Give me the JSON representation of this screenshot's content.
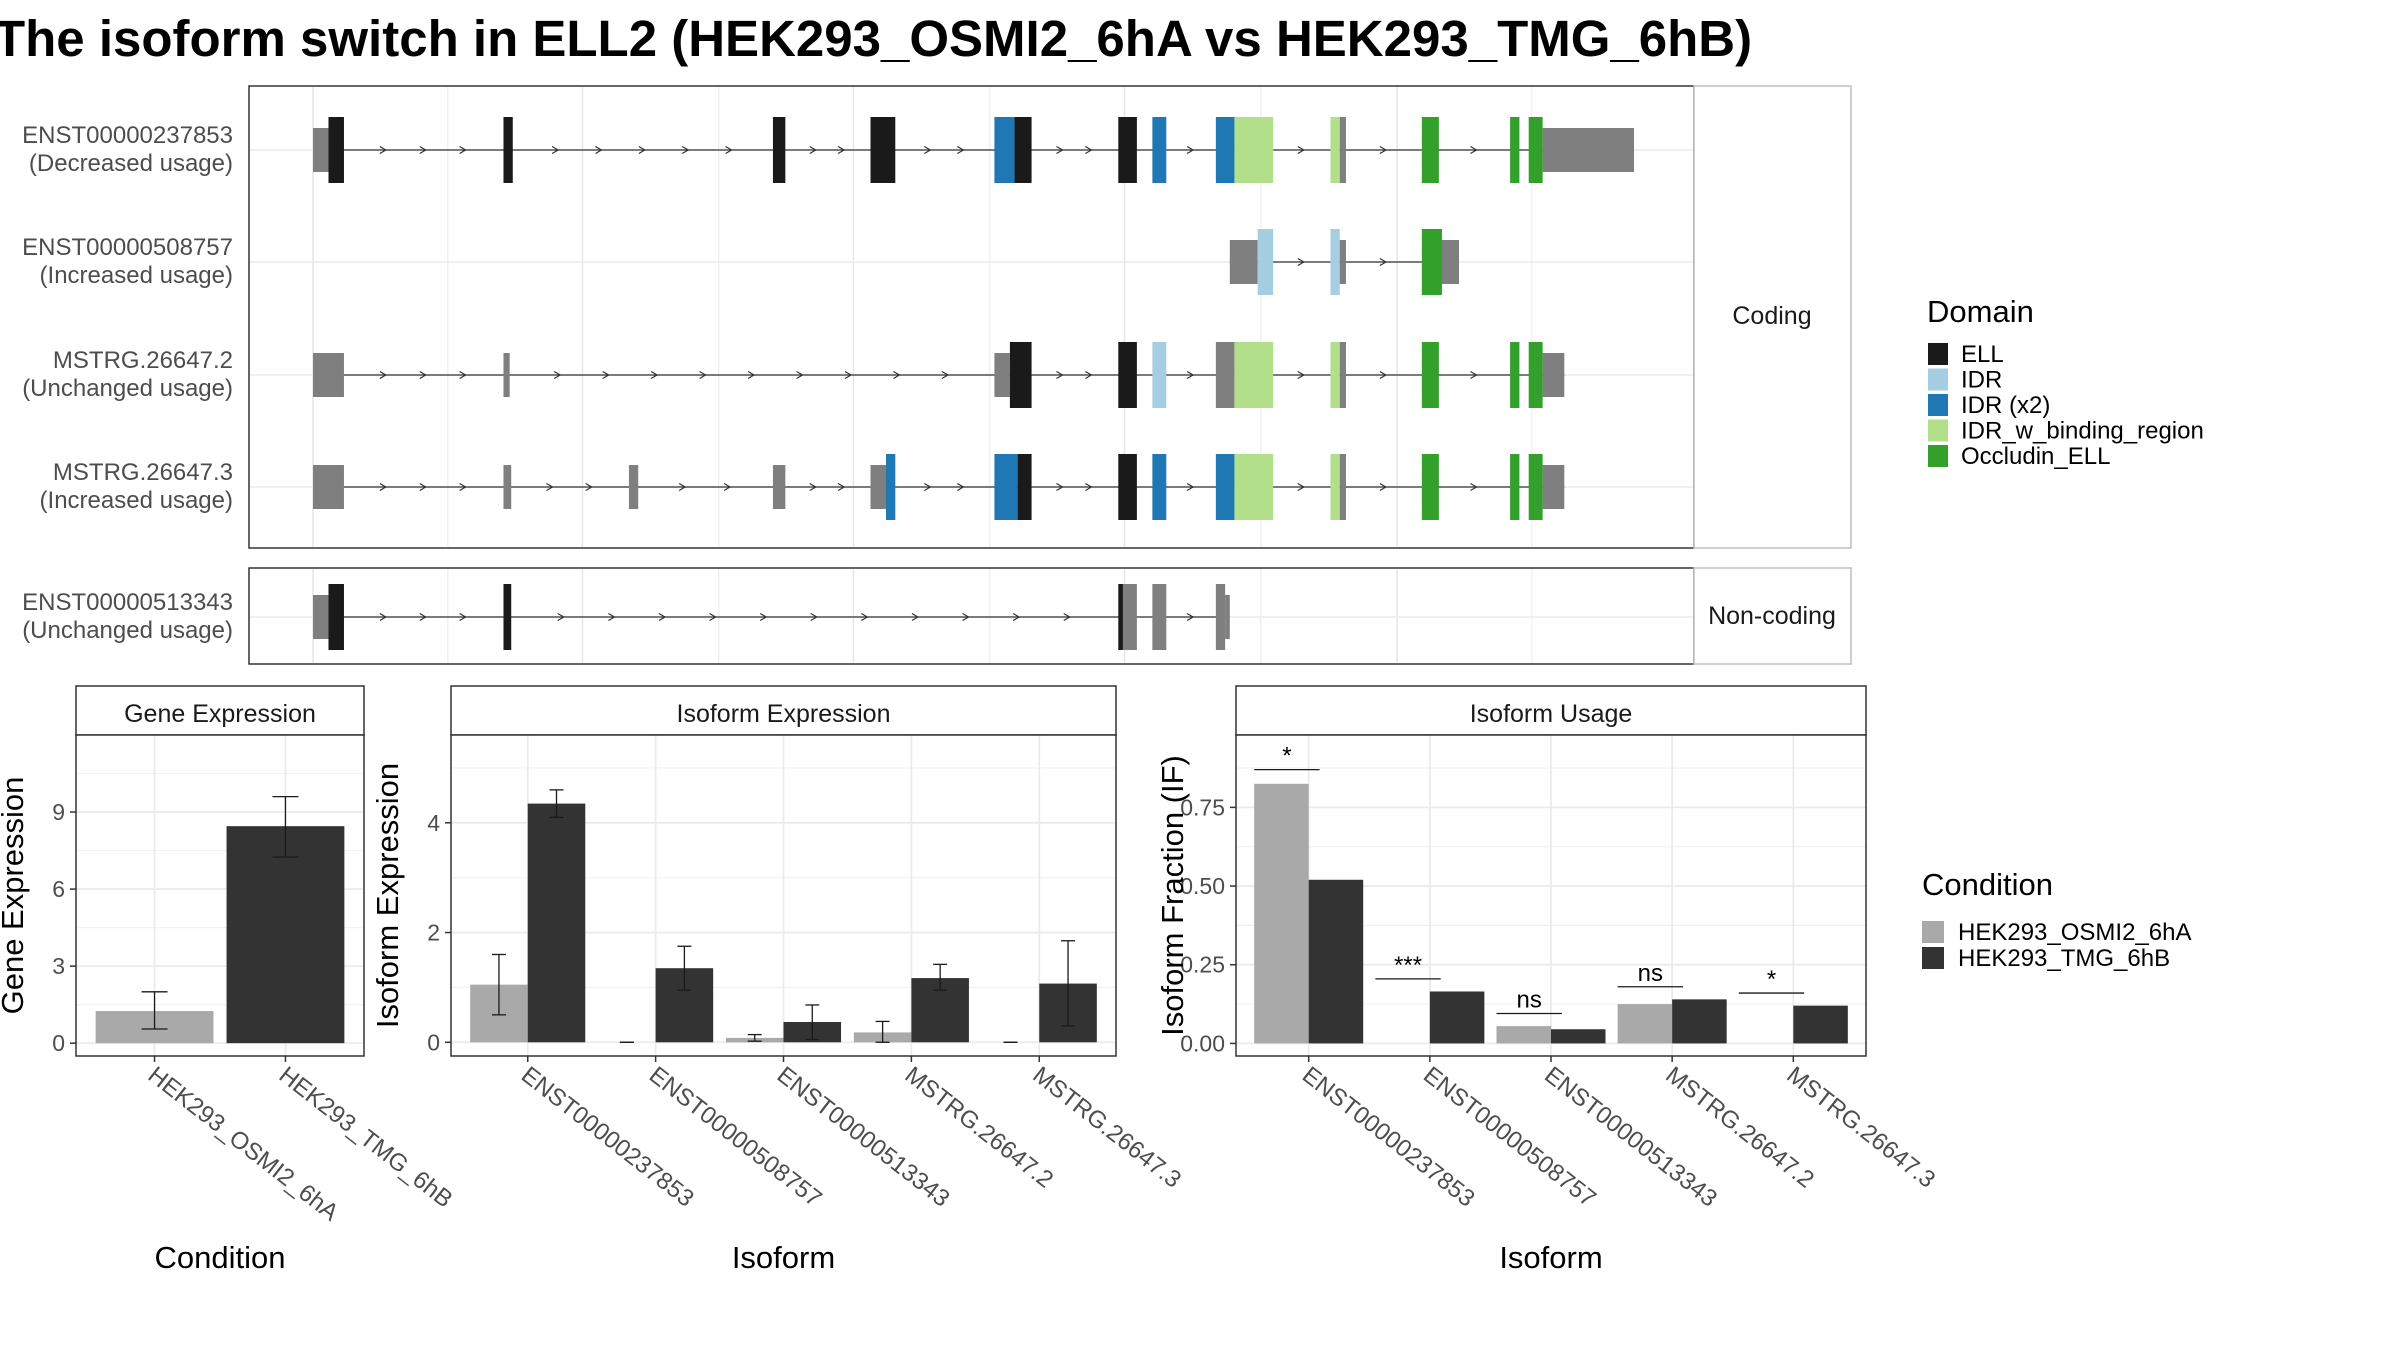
{
  "title": "The isoform switch in ELL2 (HEK293_OSMI2_6hA vs HEK293_TMG_6hB)",
  "colors": {
    "ELL": "#1a1a1a",
    "IDR": "#a6cee3",
    "IDR (x2)": "#1f78b4",
    "IDR_w_binding_region": "#b2df8a",
    "Occludin_ELL": "#33a02c",
    "utr": "#7f7f7f",
    "cond1": "#a9a9a9",
    "cond2": "#333333",
    "grid": "#ebebeb",
    "strip": "#ffffff"
  },
  "structure": {
    "facets": {
      "coding": "Coding",
      "noncoding": "Non-coding"
    },
    "legend": {
      "title": "Domain",
      "items": [
        "ELL",
        "IDR",
        "IDR (x2)",
        "IDR_w_binding_region",
        "Occludin_ELL"
      ]
    },
    "tracks": [
      {
        "id": "ENST00000237853",
        "status": "(Decreased usage)",
        "panel": "coding",
        "line": [
          63,
          1056
        ],
        "features": [
          [
            203,
            213,
            "utr",
            0.45
          ],
          [
            213,
            223,
            "ELL",
            0.8
          ],
          [
            326,
            332,
            "ELL",
            0.8
          ],
          [
            500,
            508,
            "ELL",
            0.8
          ],
          [
            563,
            579,
            "ELL",
            0.8
          ],
          [
            643,
            656,
            "IDR (x2)",
            0.8
          ],
          [
            656,
            667,
            "ELL",
            0.8
          ],
          [
            723,
            735,
            "ELL",
            0.8
          ],
          [
            745,
            754,
            "IDR (x2)",
            0.8
          ],
          [
            786,
            798,
            "IDR (x2)",
            0.8
          ],
          [
            798,
            823,
            "IDR_w_binding_region",
            0.8
          ],
          [
            860,
            866,
            "IDR_w_binding_region",
            0.8
          ],
          [
            866,
            870,
            "utr",
            0.8
          ],
          [
            919,
            930,
            "Occludin_ELL",
            0.8
          ],
          [
            976,
            982,
            "Occludin_ELL",
            0.8
          ],
          [
            988,
            997,
            "Occludin_ELL",
            0.8
          ],
          [
            997,
            1056,
            "utr",
            0.45
          ]
        ]
      },
      {
        "id": "ENST00000508757",
        "status": "(Increased usage)",
        "panel": "coding",
        "line": [
          795,
          943
        ],
        "features": [
          [
            795,
            813,
            "utr",
            0.45
          ],
          [
            813,
            823,
            "IDR",
            0.8
          ],
          [
            860,
            866,
            "IDR",
            0.8
          ],
          [
            866,
            870,
            "utr",
            0.45
          ],
          [
            919,
            932,
            "Occludin_ELL",
            0.8
          ],
          [
            932,
            943,
            "utr",
            0.45
          ]
        ]
      },
      {
        "id": "MSTRG.26647.2",
        "status": "(Unchanged usage)",
        "panel": "coding",
        "line": [
          203,
          1011
        ],
        "features": [
          [
            203,
            223,
            "utr",
            0.45
          ],
          [
            326,
            330,
            "utr",
            0.45
          ],
          [
            643,
            653,
            "utr",
            0.45
          ],
          [
            653,
            667,
            "ELL",
            0.8
          ],
          [
            723,
            735,
            "ELL",
            0.8
          ],
          [
            745,
            754,
            "IDR",
            0.8
          ],
          [
            786,
            798,
            "utr",
            0.8
          ],
          [
            798,
            823,
            "IDR_w_binding_region",
            0.8
          ],
          [
            860,
            866,
            "IDR_w_binding_region",
            0.8
          ],
          [
            866,
            870,
            "utr",
            0.8
          ],
          [
            919,
            930,
            "Occludin_ELL",
            0.8
          ],
          [
            976,
            982,
            "Occludin_ELL",
            0.8
          ],
          [
            988,
            997,
            "Occludin_ELL",
            0.8
          ],
          [
            997,
            1011,
            "utr",
            0.45
          ]
        ]
      },
      {
        "id": "MSTRG.26647.3",
        "status": "(Increased usage)",
        "panel": "coding",
        "line": [
          203,
          1011
        ],
        "features": [
          [
            203,
            223,
            "utr",
            0.45
          ],
          [
            326,
            331,
            "utr",
            0.45
          ],
          [
            407,
            413,
            "utr",
            0.45
          ],
          [
            500,
            508,
            "utr",
            0.45
          ],
          [
            563,
            573,
            "utr",
            0.45
          ],
          [
            573,
            579,
            "IDR (x2)",
            0.8
          ],
          [
            643,
            658,
            "IDR (x2)",
            0.8
          ],
          [
            658,
            667,
            "ELL",
            0.8
          ],
          [
            723,
            735,
            "ELL",
            0.8
          ],
          [
            745,
            754,
            "IDR (x2)",
            0.8
          ],
          [
            786,
            798,
            "IDR (x2)",
            0.8
          ],
          [
            798,
            823,
            "IDR_w_binding_region",
            0.8
          ],
          [
            860,
            866,
            "IDR_w_binding_region",
            0.8
          ],
          [
            866,
            870,
            "utr",
            0.8
          ],
          [
            919,
            930,
            "Occludin_ELL",
            0.8
          ],
          [
            976,
            982,
            "Occludin_ELL",
            0.8
          ],
          [
            988,
            997,
            "Occludin_ELL",
            0.8
          ],
          [
            997,
            1011,
            "utr",
            0.45
          ]
        ]
      },
      {
        "id": "ENST00000513343",
        "status": "(Unchanged usage)",
        "panel": "noncoding",
        "line": [
          203,
          795
        ],
        "features": [
          [
            203,
            213,
            "utr",
            0.45
          ],
          [
            213,
            223,
            "ELL",
            0.8
          ],
          [
            326,
            331,
            "ELL",
            0.8
          ],
          [
            723,
            726,
            "ELL",
            0.8
          ],
          [
            726,
            735,
            "utr",
            0.8
          ],
          [
            745,
            754,
            "utr",
            0.8
          ],
          [
            786,
            792,
            "utr",
            0.8
          ],
          [
            792,
            795,
            "utr",
            0.45
          ]
        ]
      }
    ]
  },
  "chart_data": [
    {
      "type": "bar",
      "title": "Gene Expression",
      "xlabel": "Condition",
      "ylabel": "Gene Expression",
      "categories": [
        "HEK293_OSMI2_6hA",
        "HEK293_TMG_6hB"
      ],
      "values": [
        1.25,
        8.45
      ],
      "errors": [
        [
          0.55,
          2.0
        ],
        [
          7.25,
          9.6
        ]
      ],
      "ylim": [
        -0.5,
        12.0
      ],
      "yticks": [
        0,
        3,
        6,
        9
      ],
      "grid": true
    },
    {
      "type": "bar",
      "title": "Isoform Expression",
      "xlabel": "Isoform",
      "ylabel": "Isoform Expression",
      "categories": [
        "ENST00000237853",
        "ENST00000508757",
        "ENST00000513343",
        "MSTRG.26647.2",
        "MSTRG.26647.3"
      ],
      "series": [
        {
          "name": "HEK293_OSMI2_6hA",
          "values": [
            1.05,
            0.0,
            0.08,
            0.18,
            0.0
          ],
          "errors": [
            [
              0.5,
              1.6
            ],
            [
              0.0,
              0.0
            ],
            [
              0.02,
              0.14
            ],
            [
              0.0,
              0.38
            ],
            [
              0.0,
              0.0
            ]
          ]
        },
        {
          "name": "HEK293_TMG_6hB",
          "values": [
            4.35,
            1.35,
            0.37,
            1.17,
            1.07
          ],
          "errors": [
            [
              4.1,
              4.6
            ],
            [
              0.95,
              1.75
            ],
            [
              0.05,
              0.68
            ],
            [
              0.95,
              1.42
            ],
            [
              0.3,
              1.85
            ]
          ]
        }
      ],
      "ylim": [
        -0.25,
        5.6
      ],
      "yticks": [
        0,
        2,
        4
      ],
      "grid": true
    },
    {
      "type": "bar",
      "title": "Isoform Usage",
      "xlabel": "Isoform",
      "ylabel": "Isoform Fraction (IF)",
      "categories": [
        "ENST00000237853",
        "ENST00000508757",
        "ENST00000513343",
        "MSTRG.26647.2",
        "MSTRG.26647.3"
      ],
      "series": [
        {
          "name": "HEK293_OSMI2_6hA",
          "values": [
            0.825,
            0.0,
            0.055,
            0.125,
            0.0
          ]
        },
        {
          "name": "HEK293_TMG_6hB",
          "values": [
            0.52,
            0.165,
            0.045,
            0.14,
            0.12
          ]
        }
      ],
      "significance": [
        "*",
        "***",
        "ns",
        "ns",
        "*"
      ],
      "sig_level": [
        0.87,
        0.205,
        0.095,
        0.18,
        0.16
      ],
      "ylim": [
        -0.04,
        0.98
      ],
      "yticks": [
        0.0,
        0.25,
        0.5,
        0.75
      ],
      "ytick_labels": [
        "0.00",
        "0.25",
        "0.50",
        "0.75"
      ],
      "grid": true
    }
  ],
  "legend_condition": {
    "title": "Condition",
    "items": [
      "HEK293_OSMI2_6hA",
      "HEK293_TMG_6hB"
    ]
  }
}
